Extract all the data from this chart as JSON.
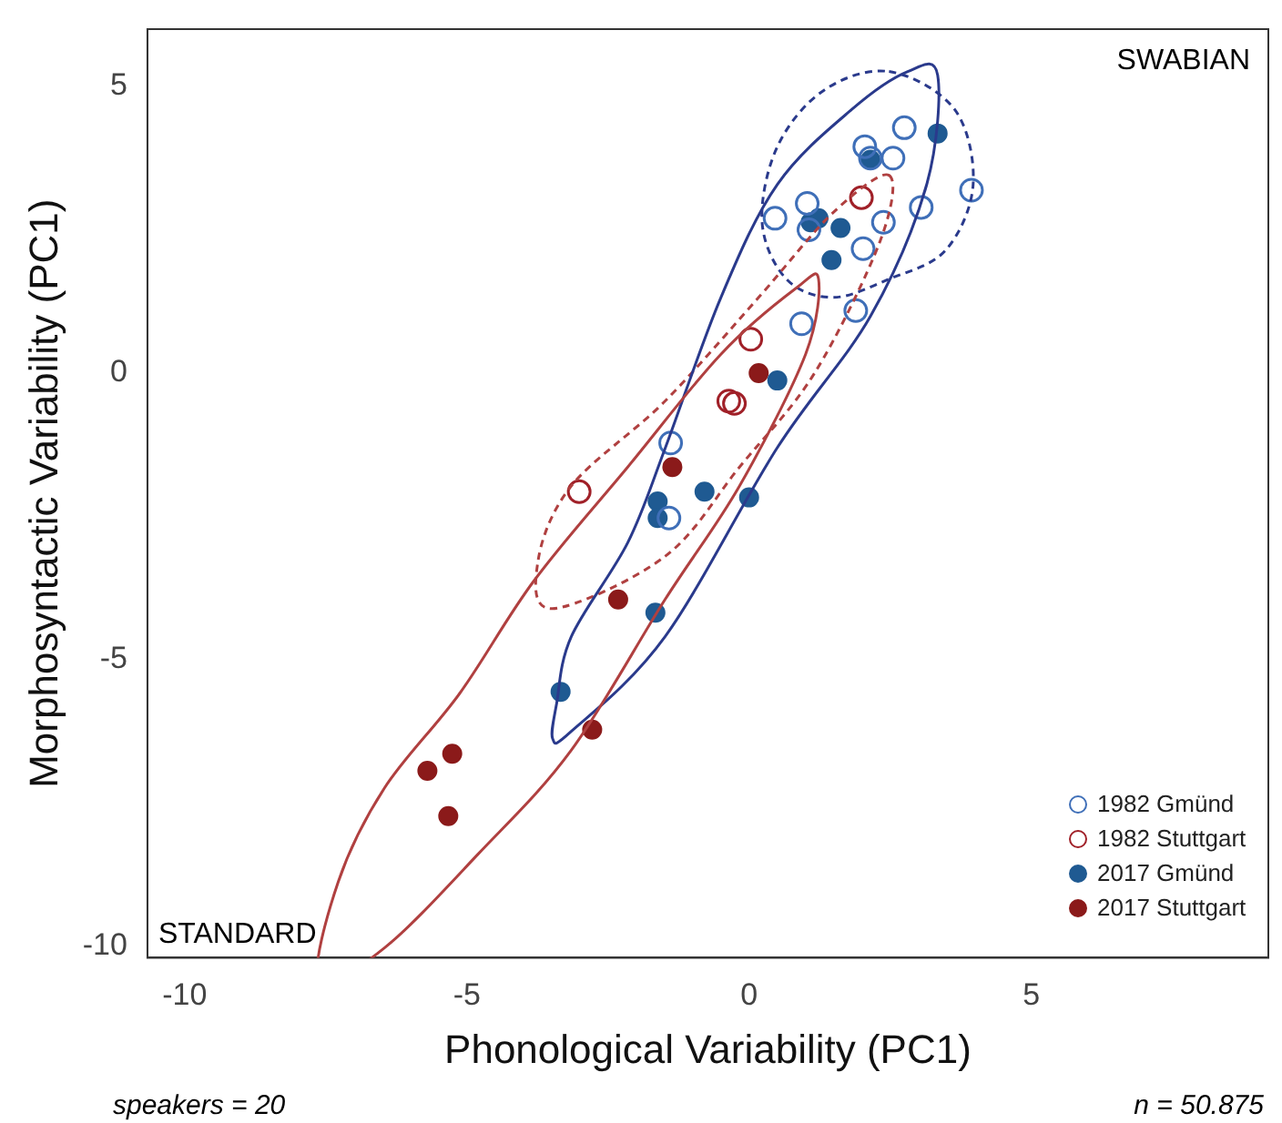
{
  "chart_data": {
    "type": "scatter",
    "xlabel": "Phonological Variability (PC1)",
    "ylabel": "Morphosyntactic Variability (PC1)",
    "xlim": [
      -10.66,
      9.2
    ],
    "ylim": [
      -10.2,
      6.0
    ],
    "xticks": [
      -10,
      -5,
      0,
      5
    ],
    "yticks": [
      -10,
      -5,
      0,
      5
    ],
    "grid": false,
    "legend": "bottom right",
    "marker": "circle",
    "annotations": [
      "SWABIAN",
      "STANDARD",
      "speakers = 20",
      "n = 50.875"
    ],
    "series": [
      {
        "name": "1982 Gmünd",
        "color": "#3f6fb8",
        "x": [
          0.46,
          1.03,
          1.06,
          2.05,
          2.15,
          2.75,
          2.55,
          3.94,
          3.05,
          2.02,
          2.38,
          1.89,
          0.93,
          -1.39,
          -1.42
        ],
        "values": [
          2.7,
          2.96,
          2.5,
          3.95,
          3.75,
          4.28,
          3.75,
          3.19,
          2.89,
          2.17,
          2.63,
          1.09,
          0.86,
          -1.22,
          -2.53
        ]
      },
      {
        "name": "1982 Stuttgart",
        "color": "#a02028",
        "x": [
          1.99,
          0.03,
          -0.36,
          -0.26,
          -3.01
        ],
        "values": [
          3.06,
          0.59,
          -0.49,
          -0.53,
          -2.07
        ]
      },
      {
        "name": "2017 Gmünd",
        "color": "#1f5a92",
        "x": [
          3.34,
          2.15,
          1.09,
          1.23,
          1.62,
          1.46,
          0.5,
          -0.79,
          -1.62,
          -1.62,
          -1.66,
          -3.34,
          0.0
        ],
        "values": [
          4.18,
          3.72,
          2.63,
          2.7,
          2.53,
          1.97,
          -0.13,
          -2.07,
          -2.24,
          -2.53,
          -4.18,
          -5.56,
          -2.17
        ]
      },
      {
        "name": "2017 Stuttgart",
        "color": "#8b1a1a",
        "x": [
          0.17,
          -1.36,
          -2.32,
          -2.78,
          -5.26,
          -5.7,
          -5.33
        ],
        "values": [
          0.0,
          -1.64,
          -3.95,
          -6.22,
          -6.64,
          -6.94,
          -7.73
        ]
      }
    ]
  }
}
